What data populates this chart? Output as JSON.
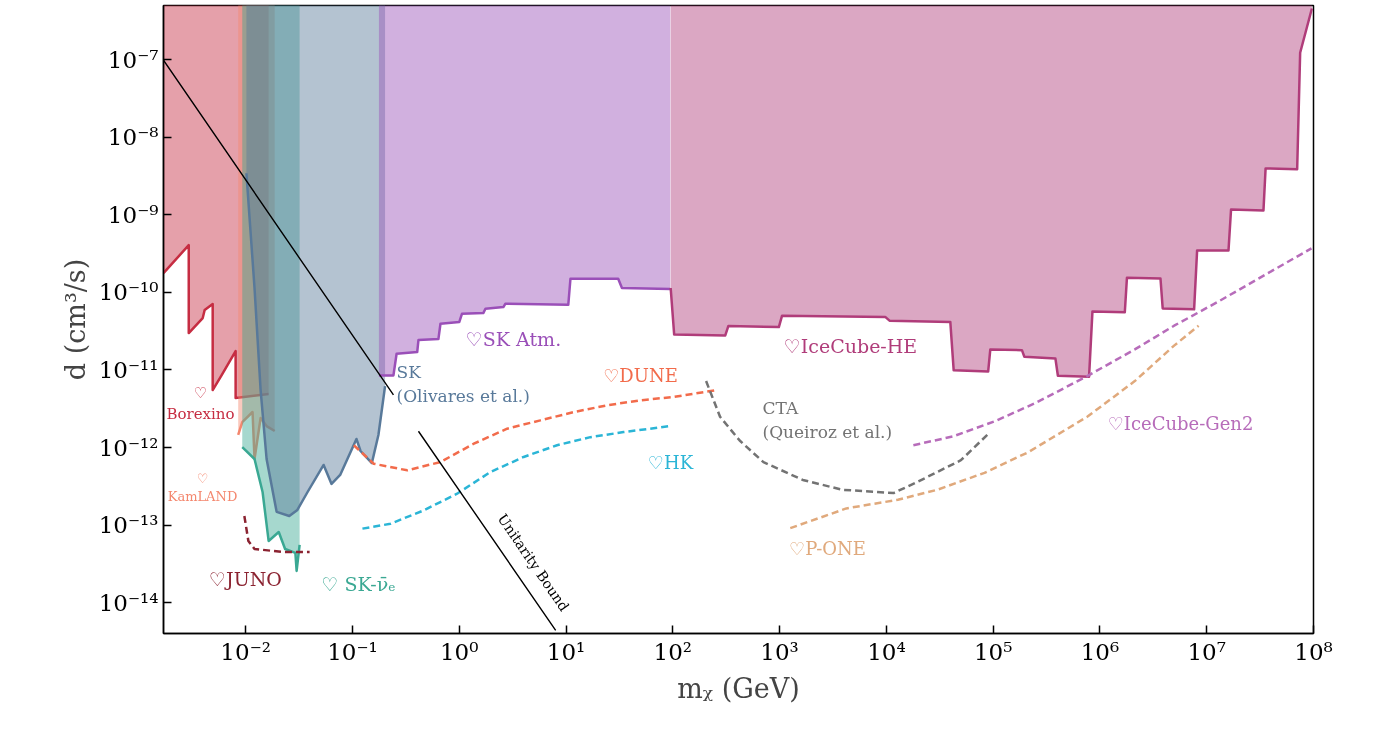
{
  "chart_data": {
    "type": "line",
    "log": "xy",
    "xlabel": "mᵪ (GeV)",
    "ylabel": "d (cm³/s)",
    "xlim": [
      0.0017,
      100000000.0
    ],
    "ylim": [
      4e-15,
      5e-07
    ],
    "xticks": [
      {
        "value": 0.01,
        "label": "10⁻²"
      },
      {
        "value": 0.1,
        "label": "10⁻¹"
      },
      {
        "value": 1,
        "label": "10⁰"
      },
      {
        "value": 10,
        "label": "10¹"
      },
      {
        "value": 100,
        "label": "10²"
      },
      {
        "value": 1000,
        "label": "10³"
      },
      {
        "value": 10000,
        "label": "10⁴"
      },
      {
        "value": 100000,
        "label": "10⁵"
      },
      {
        "value": 1000000,
        "label": "10⁶"
      },
      {
        "value": 10000000,
        "label": "10⁷"
      },
      {
        "value": 100000000,
        "label": "10⁸"
      }
    ],
    "yticks": [
      {
        "value": 1e-14,
        "label": "10⁻¹⁴"
      },
      {
        "value": 1e-13,
        "label": "10⁻¹³"
      },
      {
        "value": 1e-12,
        "label": "10⁻¹²"
      },
      {
        "value": 1e-11,
        "label": "10⁻¹¹"
      },
      {
        "value": 1e-10,
        "label": "10⁻¹⁰"
      },
      {
        "value": 1e-09,
        "label": "10⁻⁹"
      },
      {
        "value": 1e-08,
        "label": "10⁻⁸"
      },
      {
        "value": 1e-07,
        "label": "10⁻⁷"
      }
    ],
    "series": [
      {
        "name": "♡\nBorexino",
        "type": "area",
        "color": "#c62d42",
        "x": [
          0.0017,
          0.00293,
          0.00293,
          0.00396,
          0.00413,
          0.00491,
          0.00491,
          0.00596,
          0.00805,
          0.00805,
          0.0164
        ],
        "values": [
          1.77e-10,
          4.07e-10,
          2.99e-11,
          4.67e-11,
          5.92e-11,
          7.07e-11,
          5.51e-12,
          8.59e-12,
          1.75e-11,
          4.35e-12,
          4.89e-12
        ]
      },
      {
        "name": "♡\nKamLAND",
        "type": "area",
        "color": "#f4876e",
        "x": [
          0.00851,
          0.00929,
          0.0116,
          0.0121,
          0.0138,
          0.0157,
          0.0187
        ],
        "values": [
          1.45e-12,
          2.13e-12,
          2.87e-12,
          7.11e-13,
          2.4e-12,
          1.89e-12,
          1.63e-12
        ]
      },
      {
        "name": "♡ SK-ν̄ₑ",
        "type": "area",
        "color": "#3aa893",
        "x": [
          0.00929,
          0.0121,
          0.0144,
          0.0164,
          0.0204,
          0.0234,
          0.0292,
          0.03,
          0.032
        ],
        "values": [
          1.01e-12,
          7.11e-13,
          2.67e-13,
          6.24e-14,
          8.14e-14,
          4.92e-14,
          4.37e-14,
          2.56e-14,
          5.55e-14
        ]
      },
      {
        "name": "SK\n(Olivares et al.)",
        "type": "area",
        "color": "#58799a",
        "x": [
          0.01016,
          0.0121,
          0.0138,
          0.0157,
          0.0195,
          0.0256,
          0.0305,
          0.038,
          0.0537,
          0.0637,
          0.0767,
          0.109,
          0.119,
          0.152,
          0.175,
          0.202
        ],
        "values": [
          3.44e-09,
          1.14e-10,
          5.51e-12,
          7.11e-13,
          1.48e-13,
          1.31e-13,
          1.57e-13,
          2.67e-13,
          5.96e-13,
          3.39e-13,
          4.43e-13,
          1.29e-12,
          9.02e-13,
          6.31e-13,
          1.45e-12,
          6.19e-12
        ]
      },
      {
        "name": "♡SK Atm.",
        "type": "area",
        "color": "#9a4fb8",
        "x": [
          0.177,
          0.242,
          0.259,
          0.404,
          0.415,
          0.638,
          0.667,
          1.0,
          1.06,
          1.68,
          1.76,
          2.59,
          2.7,
          10.5,
          11.0,
          30.8,
          33.4,
          94.6
        ],
        "values": [
          8.51e-12,
          8.51e-12,
          1.62e-11,
          1.7e-11,
          2.43e-11,
          2.5e-11,
          3.94e-11,
          4.14e-11,
          5.3e-11,
          5.41e-11,
          6.15e-11,
          6.47e-11,
          7.13e-11,
          6.92e-11,
          1.5e-10,
          1.5e-10,
          1.14e-10,
          1.11e-10
        ]
      },
      {
        "name": "♡IceCube-HE",
        "type": "area",
        "color": "#b03c7a",
        "x": [
          95.5,
          103,
          310,
          331,
          984,
          1055,
          9750,
          10700,
          39700,
          42700,
          89800,
          94000,
          186000,
          196000,
          383000,
          404000,
          791000,
          851000,
          1710000,
          1790000,
          3690000,
          3870000,
          7620000,
          8130000,
          16000000,
          16900000,
          34000000,
          35600000,
          70300000,
          75000000,
          96600000
        ],
        "values": [
          1.14e-10,
          2.86e-11,
          2.79e-11,
          3.68e-11,
          3.57e-11,
          5.01e-11,
          4.83e-11,
          4.32e-11,
          4.16e-11,
          9.89e-12,
          9.53e-12,
          1.83e-11,
          1.8e-11,
          1.48e-11,
          1.4e-11,
          8.41e-12,
          8.2e-12,
          5.69e-11,
          5.55e-11,
          1.54e-10,
          1.51e-10,
          6.21e-11,
          6.05e-11,
          3.48e-10,
          3.48e-10,
          1.17e-09,
          1.14e-09,
          3.97e-09,
          3.88e-09,
          1.23e-07,
          4.57e-07
        ]
      },
      {
        "name": "♡JUNO",
        "line_style": "dashed",
        "color": "#8b2331",
        "x": [
          0.00972,
          0.0106,
          0.0121,
          0.0222,
          0.0397
        ],
        "values": [
          1.31e-13,
          6.24e-14,
          4.92e-14,
          4.5e-14,
          4.5e-14
        ]
      },
      {
        "name": "♡DUNE",
        "line_style": "dashed",
        "color": "#f26b4b",
        "x": [
          0.103,
          0.158,
          0.326,
          0.667,
          1.37,
          2.81,
          5.75,
          11.8,
          24.2,
          49.5,
          101,
          249
        ],
        "values": [
          1.07e-12,
          6.18e-13,
          5.08e-13,
          6.5e-13,
          1.12e-12,
          1.75e-12,
          2.24e-12,
          2.86e-12,
          3.5e-12,
          4.06e-12,
          4.48e-12,
          5.46e-12
        ]
      },
      {
        "name": "♡HK",
        "line_style": "dashed",
        "color": "#2bb5d6",
        "x": [
          0.124,
          0.227,
          0.466,
          0.955,
          1.96,
          4.01,
          8.24,
          16.9,
          34.6,
          94.6
        ],
        "values": [
          9e-14,
          1.04e-13,
          1.55e-13,
          2.54e-13,
          4.83e-13,
          7.55e-13,
          1.07e-12,
          1.36e-12,
          1.58e-12,
          1.89e-12
        ]
      },
      {
        "name": "CTA\n(Queiroz et al.)",
        "line_style": "dashed",
        "color": "#737373",
        "x": [
          205,
          277,
          423,
          706,
          1650,
          3870,
          11700,
          19500,
          29900,
          49900,
          90600
        ],
        "values": [
          7.19e-12,
          2.49e-12,
          1.23e-12,
          6.48e-13,
          3.82e-13,
          2.85e-13,
          2.59e-13,
          3.6e-13,
          4.83e-13,
          6.86e-13,
          1.51e-12
        ]
      },
      {
        "name": "♡IceCube-Gen2",
        "line_style": "dashed",
        "color": "#b76cba",
        "x": [
          17900,
          42000,
          107000,
          251000,
          728000,
          2120000,
          4950000,
          12600000,
          95700000
        ],
        "values": [
          1.07e-12,
          1.39e-12,
          2.22e-12,
          3.77e-12,
          8.07e-12,
          1.84e-11,
          3.72e-11,
          7.5e-11,
          3.7e-10
        ]
      },
      {
        "name": "♡P-ONE",
        "line_style": "dashed",
        "color": "#e0a97c",
        "x": [
          1259,
          4220,
          12800,
          29900,
          83000,
          212000,
          760000,
          2120000,
          4950000,
          8400000
        ],
        "values": [
          9.12e-14,
          1.64e-13,
          2.12e-13,
          2.85e-13,
          4.72e-13,
          8.67e-13,
          2.49e-12,
          7.18e-12,
          2.06e-11,
          3.72e-11
        ]
      },
      {
        "name": "Unitarity Bound",
        "line_style": "solid",
        "color": "#000000",
        "x": [
          0.0017,
          0.242,
          0.33,
          0.415,
          8.0
        ],
        "values": [
          9.86e-08,
          4.76e-12,
          null,
          1.62e-12,
          4.4e-15
        ]
      }
    ]
  }
}
